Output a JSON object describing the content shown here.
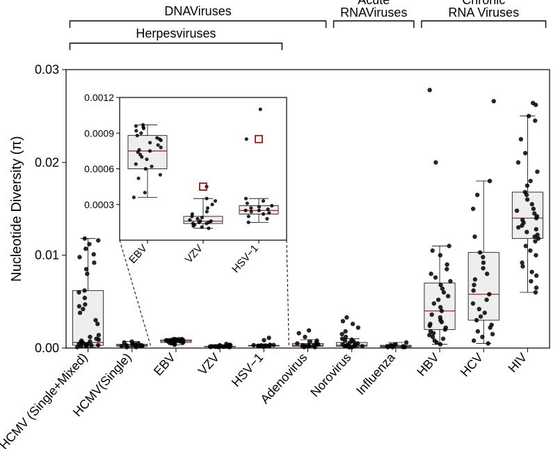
{
  "ylabel": "Nucleotide Diversity (π)",
  "main": {
    "type": "boxplot+scatter",
    "background_color": "#ffffff",
    "box_fill": "#eeeeee",
    "box_stroke": "#000000",
    "median_color": "#8b1a1a",
    "point_color": "#000000",
    "point_opacity": 0.85,
    "point_radius": 3.2,
    "axis_fontsize": 18,
    "ylabel_fontsize": 20,
    "ylim": [
      0,
      0.03
    ],
    "yticks": [
      0.0,
      0.01,
      0.02,
      0.03
    ],
    "ytick_labels": [
      "0.00",
      "0.01",
      "0.02",
      "0.03"
    ],
    "categories": [
      "HCMV (Single+Mixed)",
      "HCMV(Single)",
      "EBV",
      "VZV",
      "HSV−1",
      "Adenovirus",
      "Norovirus",
      "Influenza",
      "HBV",
      "HCV",
      "HIV"
    ],
    "groups": [
      {
        "label": "DNAViruses",
        "from": 0,
        "to": 5
      },
      {
        "label": "Acute RNAViruses",
        "from": 6,
        "to": 7,
        "multiline": [
          "Acute",
          "RNAViruses"
        ]
      },
      {
        "label": "Chronic RNA Viruses",
        "from": 8,
        "to": 10,
        "multiline": [
          "Chronic",
          "RNA Viruses"
        ]
      },
      {
        "label": "Herpesviruses",
        "from": 0,
        "to": 4,
        "sub": true
      }
    ],
    "series": [
      {
        "name": "HCMV (Single+Mixed)",
        "box": {
          "q1": 0.0003,
          "median": 0.0006,
          "q3": 0.0062,
          "wmin": 0.0001,
          "wmax": 0.0118
        },
        "points": [
          0.0001,
          0.0002,
          0.0002,
          0.0003,
          0.0003,
          0.0003,
          0.0004,
          0.0004,
          0.0005,
          0.0006,
          0.0006,
          0.0007,
          0.0008,
          0.0009,
          0.001,
          0.0012,
          0.0014,
          0.0026,
          0.003,
          0.0038,
          0.0042,
          0.0045,
          0.0047,
          0.0054,
          0.006,
          0.0062,
          0.008,
          0.0085,
          0.0092,
          0.0098,
          0.0101,
          0.0107,
          0.0112,
          0.0116,
          0.0118
        ]
      },
      {
        "name": "HCMV(Single)",
        "box": {
          "q1": 0.0002,
          "median": 0.0003,
          "q3": 0.0004,
          "wmin": 0.0001,
          "wmax": 0.0007
        },
        "points": [
          0.0001,
          0.0001,
          0.0002,
          0.0002,
          0.0002,
          0.0003,
          0.0003,
          0.0003,
          0.0004,
          0.0004,
          0.0004,
          0.0005,
          0.0006,
          0.0007
        ]
      },
      {
        "name": "EBV",
        "box": {
          "q1": 0.0006,
          "median": 0.00075,
          "q3": 0.00088,
          "wmin": 0.00036,
          "wmax": 0.00097
        },
        "points": [
          0.00036,
          0.0004,
          0.00052,
          0.00055,
          0.0006,
          0.00062,
          0.00064,
          0.00068,
          0.0007,
          0.00072,
          0.00074,
          0.00075,
          0.00076,
          0.00078,
          0.0008,
          0.00082,
          0.00084,
          0.00085,
          0.00086,
          0.00088,
          0.0009,
          0.00092,
          0.00094,
          0.00095,
          0.00096,
          0.00097
        ]
      },
      {
        "name": "VZV",
        "box": {
          "q1": 0.00014,
          "median": 0.00016,
          "q3": 0.0002,
          "wmin": 0.0001,
          "wmax": 0.00035
        },
        "points": [
          0.0001,
          0.00011,
          0.00012,
          0.00013,
          0.00014,
          0.00014,
          0.00015,
          0.00015,
          0.00016,
          0.00016,
          0.00017,
          0.00018,
          0.00019,
          0.0002,
          0.00022,
          0.00024,
          0.00027,
          0.0003,
          0.00033,
          0.00035,
          0.00045
        ]
      },
      {
        "name": "HSV−1",
        "box": {
          "q1": 0.00022,
          "median": 0.00025,
          "q3": 0.00029,
          "wmin": 0.00015,
          "wmax": 0.00035
        },
        "points": [
          0.00015,
          0.00018,
          0.0002,
          0.00022,
          0.00023,
          0.00024,
          0.00025,
          0.00025,
          0.00026,
          0.00027,
          0.00028,
          0.00029,
          0.00031,
          0.00033,
          0.00035,
          0.00085,
          0.0011
        ]
      },
      {
        "name": "Adenovirus",
        "box": {
          "q1": 0.0002,
          "median": 0.0003,
          "q3": 0.0005,
          "wmin": 0.0001,
          "wmax": 0.0009
        },
        "points": [
          0.0001,
          0.0001,
          0.0002,
          0.0002,
          0.0002,
          0.0003,
          0.0003,
          0.0003,
          0.0004,
          0.0004,
          0.0005,
          0.0006,
          0.0007,
          0.0008,
          0.0012,
          0.0016,
          0.0019
        ]
      },
      {
        "name": "Norovirus",
        "box": {
          "q1": 0.0002,
          "median": 0.0003,
          "q3": 0.0006,
          "wmin": 0.0001,
          "wmax": 0.001
        },
        "points": [
          0.0001,
          0.0001,
          0.0001,
          0.0002,
          0.0002,
          0.0002,
          0.0002,
          0.0003,
          0.0003,
          0.0003,
          0.0004,
          0.0004,
          0.0005,
          0.0006,
          0.0007,
          0.0008,
          0.0009,
          0.001,
          0.0012,
          0.0015,
          0.0018,
          0.0022,
          0.0026,
          0.0029,
          0.0033
        ]
      },
      {
        "name": "Influenza",
        "box": {
          "q1": 0.0001,
          "median": 0.0002,
          "q3": 0.0003,
          "wmin": 0.0001,
          "wmax": 0.0006
        },
        "points": [
          0.0001,
          0.0001,
          0.0001,
          0.0001,
          0.0002,
          0.0002,
          0.0002,
          0.0003,
          0.0003,
          0.0004,
          0.0006
        ]
      },
      {
        "name": "HBV",
        "box": {
          "q1": 0.002,
          "median": 0.004,
          "q3": 0.007,
          "wmin": 0.0004,
          "wmax": 0.011
        },
        "points": [
          0.0004,
          0.0006,
          0.0008,
          0.001,
          0.0012,
          0.0014,
          0.0016,
          0.0018,
          0.002,
          0.0022,
          0.0024,
          0.0026,
          0.0028,
          0.003,
          0.0033,
          0.0036,
          0.004,
          0.0044,
          0.0048,
          0.0052,
          0.0056,
          0.006,
          0.0064,
          0.0068,
          0.0072,
          0.0076,
          0.008,
          0.0085,
          0.009,
          0.01,
          0.0105,
          0.011,
          0.02,
          0.0278
        ]
      },
      {
        "name": "HCV",
        "box": {
          "q1": 0.003,
          "median": 0.0058,
          "q3": 0.0103,
          "wmin": 0.0005,
          "wmax": 0.018
        },
        "points": [
          0.0005,
          0.0008,
          0.0012,
          0.0015,
          0.0018,
          0.0022,
          0.0025,
          0.003,
          0.0034,
          0.0038,
          0.0042,
          0.0048,
          0.0052,
          0.0058,
          0.0062,
          0.0068,
          0.0074,
          0.008,
          0.0086,
          0.0092,
          0.0098,
          0.0103,
          0.012,
          0.015,
          0.0165,
          0.018,
          0.0266
        ]
      },
      {
        "name": "HIV",
        "box": {
          "q1": 0.0118,
          "median": 0.014,
          "q3": 0.0168,
          "wmin": 0.006,
          "wmax": 0.025
        },
        "points": [
          0.006,
          0.0065,
          0.0072,
          0.0078,
          0.0082,
          0.0088,
          0.0092,
          0.01,
          0.0105,
          0.011,
          0.0115,
          0.0118,
          0.012,
          0.0122,
          0.0125,
          0.0128,
          0.013,
          0.0132,
          0.0135,
          0.0138,
          0.014,
          0.0142,
          0.0145,
          0.0148,
          0.015,
          0.0155,
          0.016,
          0.0165,
          0.0168,
          0.0175,
          0.018,
          0.019,
          0.02,
          0.021,
          0.0225,
          0.0245,
          0.025,
          0.0262,
          0.0264
        ]
      }
    ]
  },
  "inset": {
    "type": "boxplot+scatter",
    "ylim": [
      0,
      0.0012
    ],
    "yticks": [
      0.0003,
      0.0006,
      0.0009,
      0.0012
    ],
    "ytick_labels": [
      "0.0003",
      "0.0006",
      "0.0009",
      "0.0012"
    ],
    "categories": [
      "EBV",
      "VZV",
      "HSV−1"
    ],
    "outlier_marker_color": "#8b1a1a",
    "series_from_main": [
      "EBV",
      "VZV",
      "HSV−1"
    ],
    "outliers": {
      "VZV": [
        0.00045
      ],
      "HSV−1": [
        0.00085
      ]
    }
  }
}
